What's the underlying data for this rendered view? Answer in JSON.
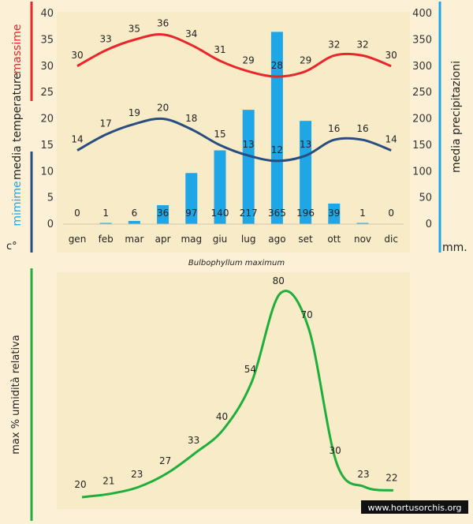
{
  "chart_data": [
    {
      "type": "bar+line",
      "categories": [
        "gen",
        "feb",
        "mar",
        "apr",
        "mag",
        "giu",
        "lug",
        "ago",
        "set",
        "ott",
        "nov",
        "dic"
      ],
      "series": [
        {
          "name": "massime",
          "type": "line",
          "axis": "left",
          "color": "#e8262b",
          "values": [
            30,
            33,
            35,
            36,
            34,
            31,
            29,
            28,
            29,
            32,
            32,
            30
          ]
        },
        {
          "name": "mimime",
          "type": "line",
          "axis": "left",
          "color": "#2a4d80",
          "values": [
            14,
            17,
            19,
            20,
            18,
            15,
            13,
            12,
            13,
            16,
            16,
            14
          ]
        },
        {
          "name": "media precipitazioni",
          "type": "bar",
          "axis": "right",
          "color": "#1ea6e6",
          "values": [
            0,
            1,
            6,
            36,
            97,
            140,
            217,
            365,
            196,
            39,
            1,
            0
          ]
        }
      ],
      "left_axis": {
        "ylim": [
          0,
          40
        ],
        "ticks": [
          "0",
          "5",
          "10",
          "15",
          "20",
          "25",
          "30",
          "35",
          "40"
        ],
        "label_parts": [
          "massime",
          "media temperature",
          "mimime",
          "c°"
        ]
      },
      "right_axis": {
        "ylim": [
          0,
          400
        ],
        "ticks": [
          "0",
          "50",
          "100",
          "150",
          "200",
          "250",
          "300",
          "350",
          "400"
        ],
        "label": "media precipitazioni",
        "unit": "mm."
      },
      "grid": false
    },
    {
      "type": "line",
      "categories": [
        "gen",
        "feb",
        "mar",
        "apr",
        "mag",
        "giu",
        "lug",
        "ago",
        "set",
        "ott",
        "nov",
        "dic"
      ],
      "series": [
        {
          "name": "",
          "color": "#1fae3c",
          "values": [
            20,
            21,
            23,
            27,
            33,
            40,
            54,
            80,
            70,
            30,
            23,
            22
          ]
        }
      ],
      "ylabel": "max % umidità relativa",
      "grid": false
    }
  ],
  "caption": "Bulbophyllum maximum",
  "watermark": "www.hortusorchis.org",
  "colors": {
    "background": "#fcf1d6",
    "plot_background": "#f8ecc8",
    "max": "#e8262b",
    "min": "#2a4d80",
    "rain": "#1ea6e6",
    "humidity": "#1fae3c"
  }
}
